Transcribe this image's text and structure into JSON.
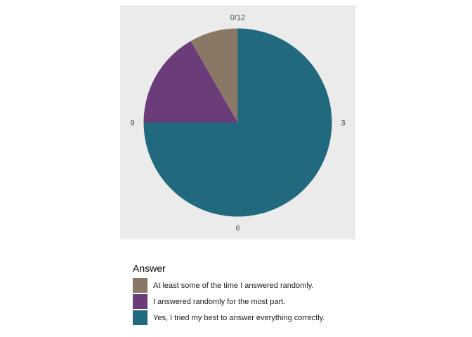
{
  "chart_data": {
    "type": "pie",
    "title": "",
    "categories": [
      "At least some of the time I answered randomly.",
      "I answered randomly for the most part.",
      "Yes, I tried my best to answer everything correctly."
    ],
    "values": [
      1,
      2,
      9
    ],
    "total": 12,
    "colors": [
      "#8a7866",
      "#6b3b7a",
      "#21697f"
    ],
    "angular_axis": {
      "ticks": [
        "0/12",
        "3",
        "6",
        "9"
      ],
      "range": [
        0,
        12
      ]
    },
    "legend": {
      "title": "Answer",
      "position": "bottom"
    },
    "panel_background": "#ebebeb",
    "grid": false
  }
}
